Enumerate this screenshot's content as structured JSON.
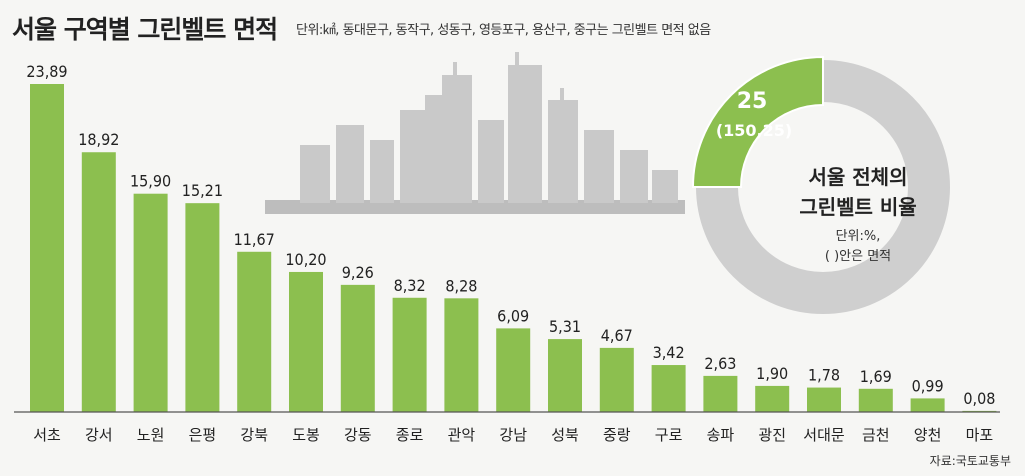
{
  "title": "서울 구역별 그린벨트 면적",
  "subtitle": "단위:㎢, 동대문구, 동작구, 성동구, 영등포구, 용산구, 중구는 그린벨트 면적 없음",
  "source": "자료:국토교통부",
  "colors": {
    "bar": "#8cbf4f",
    "bar_edge": "#6fa336",
    "ring": "#cfcfcf",
    "baseline": "#555555"
  },
  "chart_data": {
    "type": "bar",
    "categories": [
      "서초",
      "강서",
      "노원",
      "은평",
      "강북",
      "도봉",
      "강동",
      "종로",
      "관악",
      "강남",
      "성북",
      "중랑",
      "구로",
      "송파",
      "광진",
      "서대문",
      "금천",
      "양천",
      "마포"
    ],
    "values": [
      23.89,
      18.92,
      15.9,
      15.21,
      11.67,
      10.2,
      9.26,
      8.32,
      8.28,
      6.09,
      5.31,
      4.67,
      3.42,
      2.63,
      1.9,
      1.78,
      1.69,
      0.99,
      0.08
    ],
    "value_labels": [
      "23,89",
      "18,92",
      "15,90",
      "15,21",
      "11,67",
      "10,20",
      "9,26",
      "8,32",
      "8,28",
      "6,09",
      "5,31",
      "4,67",
      "3,42",
      "2,63",
      "1,90",
      "1,78",
      "1,69",
      "0,99",
      "0,08"
    ],
    "ylim": [
      0,
      24
    ],
    "grid": false
  },
  "donut": {
    "percent": 25,
    "percent_label": "25",
    "area_label": "(150,25)",
    "title_line1": "서울 전체의",
    "title_line2": "그린벨트 비율",
    "unit_line1": "단위:%,",
    "unit_line2": "(  )안은 면적"
  }
}
